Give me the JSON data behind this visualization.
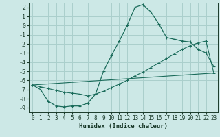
{
  "xlabel": "Humidex (Indice chaleur)",
  "bg_color": "#cce8e6",
  "grid_color": "#aacfcc",
  "line_color": "#1a6b5a",
  "xlim": [
    -0.5,
    23.5
  ],
  "ylim": [
    -9.5,
    2.5
  ],
  "xticks": [
    0,
    1,
    2,
    3,
    4,
    5,
    6,
    7,
    8,
    9,
    10,
    11,
    12,
    13,
    14,
    15,
    16,
    17,
    18,
    19,
    20,
    21,
    22,
    23
  ],
  "yticks": [
    2,
    1,
    0,
    -1,
    -2,
    -3,
    -4,
    -5,
    -6,
    -7,
    -8,
    -9
  ],
  "line1_x": [
    0,
    1,
    2,
    3,
    4,
    5,
    6,
    7,
    8,
    9,
    10,
    11,
    12,
    13,
    14,
    15,
    16,
    17,
    18,
    19,
    20,
    21,
    22,
    23
  ],
  "line1_y": [
    -6.5,
    -7.0,
    -8.3,
    -8.8,
    -8.9,
    -8.8,
    -8.8,
    -8.5,
    -7.5,
    -5.0,
    -3.3,
    -1.7,
    0.0,
    2.0,
    2.3,
    1.5,
    0.2,
    -1.3,
    -1.5,
    -1.7,
    -1.8,
    -2.6,
    -3.0,
    -4.5
  ],
  "line2_x": [
    0,
    1,
    2,
    3,
    4,
    5,
    6,
    7,
    8,
    9,
    10,
    11,
    12,
    13,
    14,
    15,
    16,
    17,
    18,
    19,
    20,
    21,
    22,
    23
  ],
  "line2_y": [
    -6.5,
    -6.7,
    -6.9,
    -7.1,
    -7.3,
    -7.4,
    -7.5,
    -7.7,
    -7.5,
    -7.2,
    -6.8,
    -6.4,
    -6.0,
    -5.5,
    -5.1,
    -4.6,
    -4.1,
    -3.6,
    -3.1,
    -2.6,
    -2.2,
    -1.9,
    -1.7,
    -5.2
  ],
  "line3_x": [
    0,
    23
  ],
  "line3_y": [
    -6.5,
    -5.2
  ]
}
